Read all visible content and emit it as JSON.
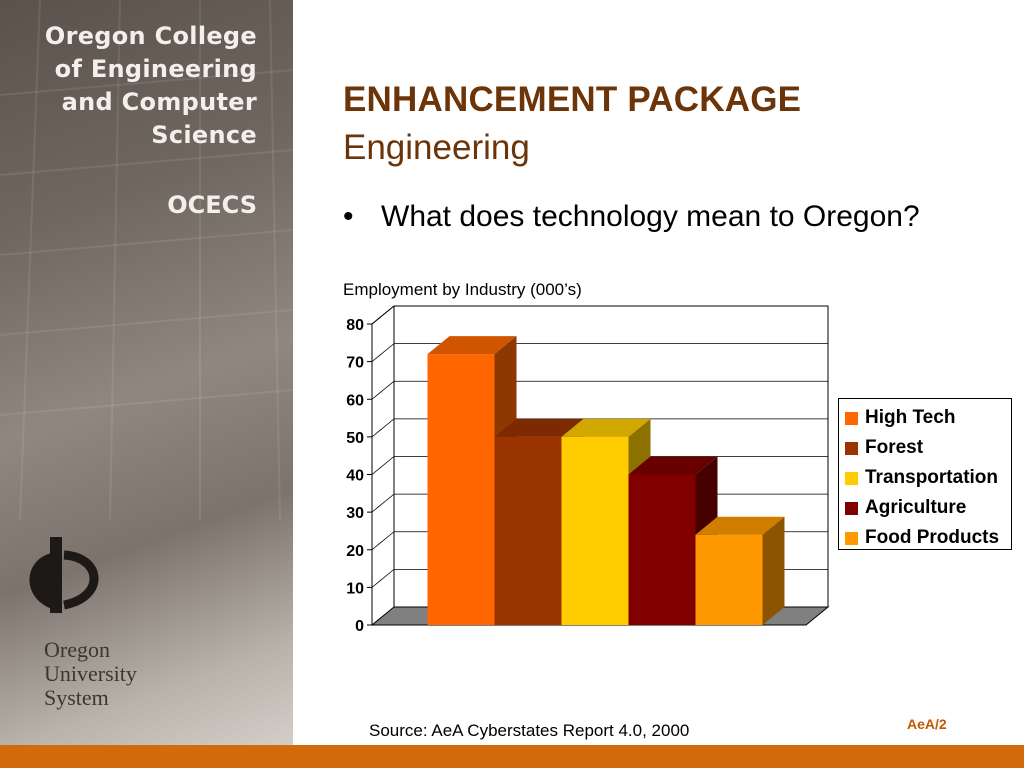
{
  "sidebar": {
    "college_name_lines": [
      "Oregon College",
      "of Engineering",
      "and Computer",
      "Science"
    ],
    "college_abbr": "OCECS",
    "system_name_lines": [
      "Oregon",
      "University",
      "System"
    ]
  },
  "slide": {
    "title": "ENHANCEMENT PACKAGE",
    "subtitle": "Engineering",
    "bullet": "What does technology mean to Oregon?",
    "source": "Source: AeA Cyberstates Report 4.0, 2000",
    "footer_tag": "AeA/2"
  },
  "chart_data": {
    "type": "bar",
    "title": "Employment by Industry (000’s)",
    "categories": [
      "High Tech",
      "Forest",
      "Transportation",
      "Agriculture",
      "Food Products"
    ],
    "values": [
      72,
      50,
      50,
      40,
      24
    ],
    "colors": [
      "#ff6600",
      "#993300",
      "#ffcc00",
      "#800000",
      "#ff9900"
    ],
    "ylim": [
      0,
      80
    ],
    "yticks": [
      0,
      10,
      20,
      30,
      40,
      50,
      60,
      70,
      80
    ],
    "grid": true,
    "style": "3d",
    "legend_position": "right"
  }
}
